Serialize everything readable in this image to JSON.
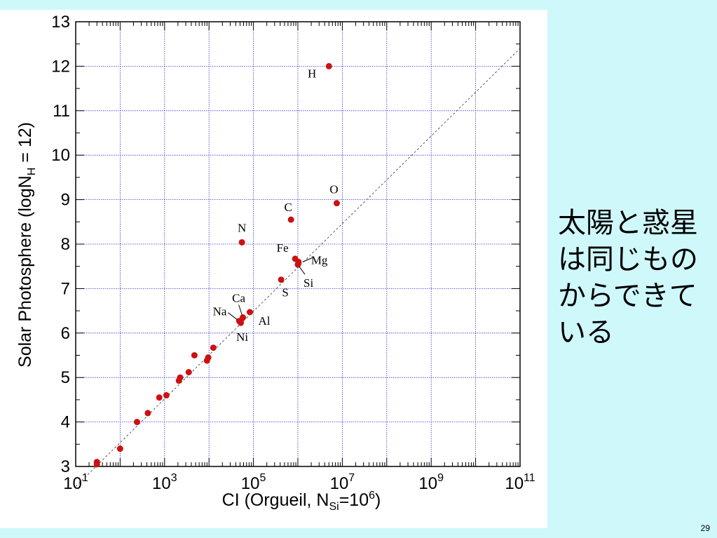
{
  "slide": {
    "caption": "太陽と惑星は同じものからできている",
    "page_number": "29"
  },
  "colors": {
    "background": "#cff8fb",
    "panel": "#ffffff",
    "grid": "#3333cc",
    "point": "#cc1111",
    "axis": "#000000"
  },
  "chart_data": {
    "type": "scatter",
    "xlabel_parts": {
      "prefix": "CI (Orgueil, N",
      "sub": "Si",
      "mid": "=10",
      "sup": "6",
      "suffix": ")"
    },
    "ylabel_parts": {
      "prefix": "Solar Photosphere (logN",
      "sub": "H",
      "suffix": " = 12)"
    },
    "x_scale": "log",
    "xlim": [
      10,
      100000000000
    ],
    "ylim": [
      3,
      13
    ],
    "x_ticks": [
      {
        "value": 10,
        "base": "10",
        "exp": "1"
      },
      {
        "value": 1000,
        "base": "10",
        "exp": "3"
      },
      {
        "value": 100000,
        "base": "10",
        "exp": "5"
      },
      {
        "value": 10000000,
        "base": "10",
        "exp": "7"
      },
      {
        "value": 1000000000,
        "base": "10",
        "exp": "9"
      },
      {
        "value": 100000000000,
        "base": "10",
        "exp": "11"
      }
    ],
    "y_ticks": [
      "3",
      "4",
      "5",
      "6",
      "7",
      "8",
      "9",
      "10",
      "11",
      "12",
      "13"
    ],
    "grid": true,
    "reference_line": {
      "style": "dashed",
      "from": {
        "x": 10,
        "y": 2.55
      },
      "to": {
        "x": 100000000000,
        "y": 12.4
      }
    },
    "labeled_points": [
      {
        "label": "H",
        "x": 5000000,
        "y": 12.0
      },
      {
        "label": "O",
        "x": 7500000,
        "y": 8.92
      },
      {
        "label": "C",
        "x": 700000,
        "y": 8.55
      },
      {
        "label": "N",
        "x": 55000,
        "y": 8.04
      },
      {
        "label": "Fe",
        "x": 870000,
        "y": 7.67
      },
      {
        "label": "Mg",
        "x": 1030000,
        "y": 7.6
      },
      {
        "label": "Si",
        "x": 1000000,
        "y": 7.54
      },
      {
        "label": "S",
        "x": 420000,
        "y": 7.2
      },
      {
        "label": "Ca",
        "x": 58000,
        "y": 6.35
      },
      {
        "label": "Na",
        "x": 48000,
        "y": 6.27
      },
      {
        "label": "Al",
        "x": 83000,
        "y": 6.47
      },
      {
        "label": "Ni",
        "x": 52000,
        "y": 6.23
      }
    ],
    "unlabeled_points": [
      {
        "x": 30,
        "y": 3.1
      },
      {
        "x": 30,
        "y": 3.05
      },
      {
        "x": 100,
        "y": 3.4
      },
      {
        "x": 240,
        "y": 4.0
      },
      {
        "x": 420,
        "y": 4.2
      },
      {
        "x": 760,
        "y": 4.55
      },
      {
        "x": 1100,
        "y": 4.6
      },
      {
        "x": 2100,
        "y": 4.93
      },
      {
        "x": 2250,
        "y": 5.0
      },
      {
        "x": 3500,
        "y": 5.12
      },
      {
        "x": 4700,
        "y": 5.5
      },
      {
        "x": 9000,
        "y": 5.38
      },
      {
        "x": 9600,
        "y": 5.45
      },
      {
        "x": 12500,
        "y": 5.67
      }
    ]
  }
}
